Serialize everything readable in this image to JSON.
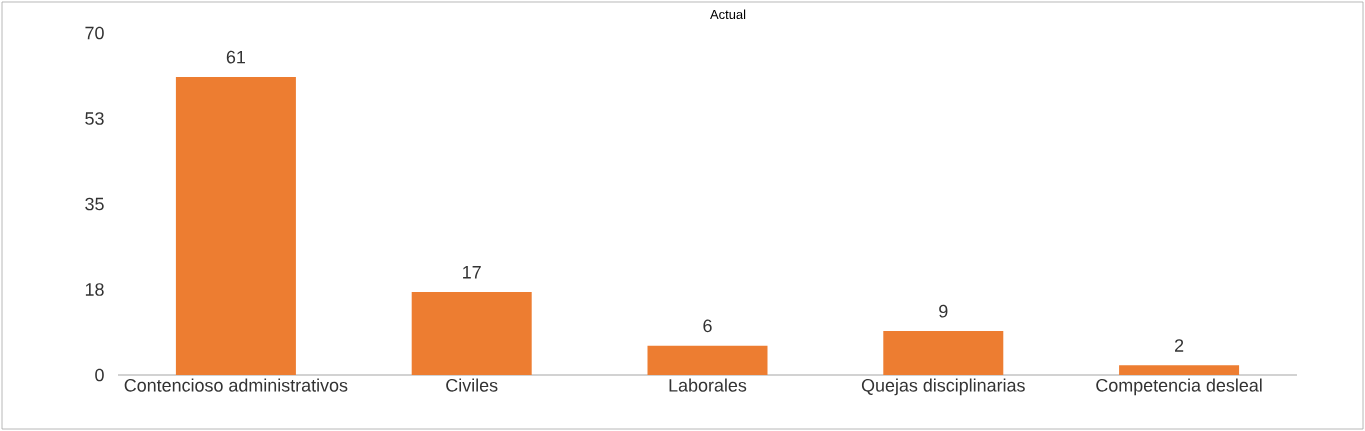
{
  "chart_data": {
    "type": "bar",
    "title": "Actual",
    "categories": [
      "Contencioso administrativos",
      "Civiles",
      "Laborales",
      "Quejas disciplinarias",
      "Competencia desleal"
    ],
    "values": [
      61,
      17,
      6,
      9,
      2
    ],
    "color": "#ed7d31",
    "ylim": [
      0,
      70
    ],
    "yticks": [
      0,
      {
        "value": 17.5,
        "label": "18"
      },
      35,
      {
        "value": 52.5,
        "label": "53"
      },
      70
    ],
    "data_labels": true
  }
}
